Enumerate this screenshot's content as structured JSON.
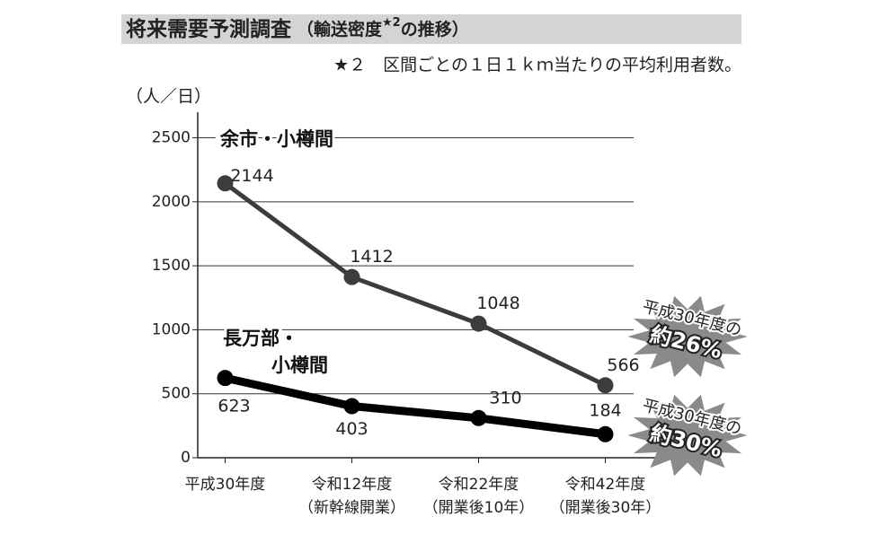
{
  "chart_data": {
    "type": "line",
    "title": "将来需要予測調査",
    "subtitle_parts": [
      "（輸送密度",
      "★2",
      "の推移）"
    ],
    "footnote": "★２　区間ごとの１日１ｋｍ当たりの平均利用者数。",
    "y_label": "（人／日）",
    "categories": [
      "平成30年度",
      "令和12年度",
      "令和22年度",
      "令和42年度"
    ],
    "category_notes": [
      null,
      "（新幹線開業）",
      "（開業後10年）",
      "（開業後30年）"
    ],
    "series": [
      {
        "label_lines": [
          "余市・小樽間"
        ],
        "color": "#3c3c3c",
        "values": [
          2144,
          1412,
          1048,
          566
        ]
      },
      {
        "label_lines": [
          "長万部・",
          "小樽間"
        ],
        "color": "#000000",
        "values": [
          623,
          403,
          310,
          184
        ]
      }
    ],
    "ylim": [
      0,
      2700
    ],
    "yticks": [
      0,
      500,
      1000,
      1500,
      2000,
      2500
    ],
    "grid": true,
    "annotations": [
      {
        "lines": [
          "平成30年度の",
          "約26%"
        ]
      },
      {
        "lines": [
          "平成30年度の",
          "約30%"
        ]
      }
    ]
  }
}
